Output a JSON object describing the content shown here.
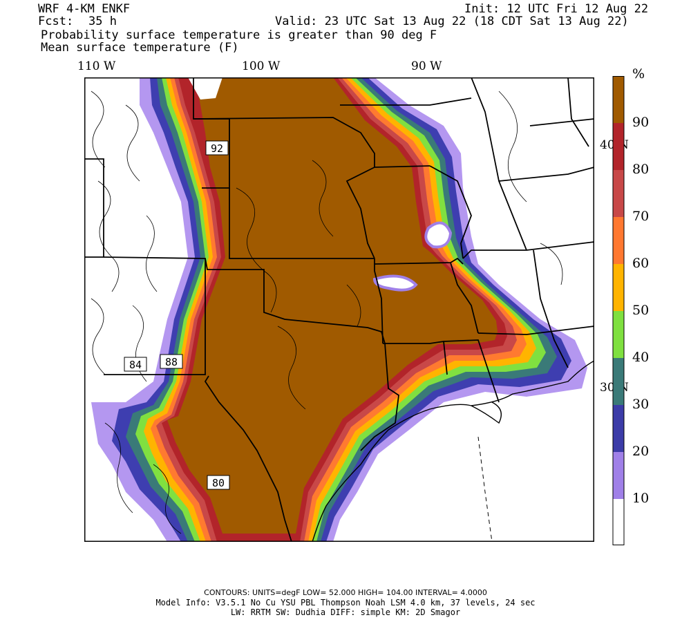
{
  "header": {
    "model": "WRF 4-KM ENKF",
    "init": "Init: 12 UTC Fri 12 Aug 22",
    "fcst_label": "Fcst:",
    "fcst_value": "35 h",
    "valid": "Valid: 23 UTC Sat 13 Aug 22 (18 CDT Sat 13 Aug 22)",
    "field1": "Probability surface temperature is greater than 90 deg F",
    "field2": "Mean surface temperature (F)"
  },
  "axes": {
    "lon_labels": [
      "110 W",
      "100 W",
      "90 W"
    ],
    "lat_labels": [
      "40 N",
      "30 N"
    ]
  },
  "contour_labels": [
    "92",
    "84",
    "88",
    "80"
  ],
  "colorbar": {
    "unit": "%",
    "levels": [
      "90",
      "80",
      "70",
      "60",
      "50",
      "40",
      "30",
      "20",
      "10"
    ],
    "colors": [
      "#a05a00",
      "#b2242a",
      "#c84848",
      "#ff7830",
      "#ffb400",
      "#7fe040",
      "#3a7a78",
      "#3c3ca8",
      "#a080e8",
      "#ffffff"
    ]
  },
  "footer": {
    "contours": "CONTOURS:  UNITS=degF  LOW=  52.000      HIGH=  104.00      INTERVAL=   4.0000",
    "model_info": "Model Info: V3.5.1    No Cu   YSU PBL  Thompson     Noah LSM  4.0 km,  37 levels,    24 sec",
    "physics": "LW: RRTM SW: Dudhia  DIFF: simple KM: 2D Smagor"
  }
}
